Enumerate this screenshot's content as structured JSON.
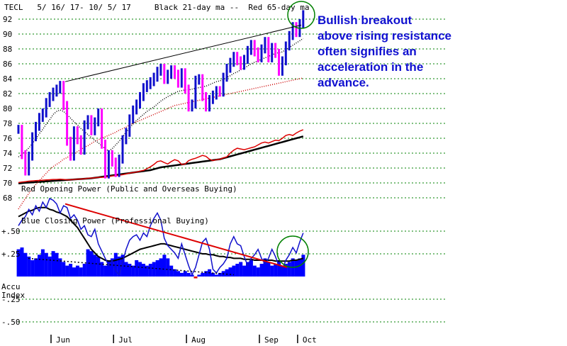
{
  "chart_data": {
    "type": "line",
    "title": "TECL   5/ 16/ 17- 10/ 5/ 17     Black 21-day ma --  Red 65-day ma",
    "price_axis": {
      "ticks": [
        "92",
        "90",
        "88",
        "86",
        "84",
        "82",
        "80",
        "78",
        "76",
        "74",
        "72",
        "70",
        "68"
      ],
      "ylim": [
        67,
        93
      ],
      "grid": true
    },
    "indicator_axis": {
      "ticks": [
        "+.50",
        "+.25",
        "-.25",
        "-.50"
      ],
      "ylim": [
        -0.6,
        0.6
      ],
      "index_label": [
        "Accu",
        "Index"
      ]
    },
    "x_axis": {
      "months": [
        "Jun",
        "Jul",
        "Aug",
        "Sep",
        "Oct"
      ]
    },
    "annotation": [
      "Bullish breakout",
      "above rising resistance",
      "often signifies an",
      "acceleration in the",
      "advance."
    ],
    "opening_power_label": "Red Opening Power (Public and Overseas Buying)",
    "closing_power_label": "Blue Closing Power (Professional Buying)",
    "colors": {
      "up_bar": "#1010cc",
      "down_bar": "#ff00ff",
      "ma65": "#cc0000",
      "ma21": "#000000",
      "opening_power": "#dd0000",
      "closing_power": "#1010cc",
      "accumulation": "#0000ff",
      "grid": "#008000",
      "circle": "#008000"
    },
    "price_close": [
      77.2,
      73.8,
      71.6,
      73.6,
      76.2,
      77.6,
      78.8,
      79.4,
      80.8,
      81.6,
      82.2,
      82.6,
      83.1,
      80.4,
      75.6,
      73.6,
      77.0,
      75.8,
      74.4,
      77.8,
      78.5,
      77.0,
      78.2,
      79.4,
      75.2,
      71.2,
      73.8,
      72.8,
      71.4,
      73.2,
      75.8,
      76.8,
      78.6,
      79.8,
      80.6,
      81.6,
      82.8,
      83.2,
      83.6,
      84.2,
      85.0,
      85.4,
      83.9,
      84.6,
      85.2,
      84.6,
      83.4,
      84.8,
      82.6,
      80.2,
      80.6,
      83.8,
      84.0,
      81.6,
      80.2,
      81.2,
      81.8,
      82.4,
      82.2,
      84.2,
      85.4,
      86.2,
      87.0,
      86.4,
      85.8,
      86.6,
      87.8,
      88.6,
      87.6,
      86.8,
      88.0,
      89.0,
      86.8,
      88.2,
      87.4,
      85.0,
      86.4,
      88.4,
      89.8,
      91.0,
      90.2,
      91.4,
      92.6
    ],
    "ma65": [
      66.5,
      67.2,
      67.9,
      68.6,
      69.2,
      69.8,
      70.3,
      70.8,
      71.3,
      71.8,
      72.2,
      72.5,
      72.8,
      73.2,
      73.4,
      73.7,
      73.9,
      74.2,
      74.5,
      74.8,
      75.0,
      75.3,
      75.6,
      75.8,
      76.0,
      76.2,
      76.4,
      76.6,
      76.8,
      77.1,
      77.3,
      77.5,
      77.8,
      78.0,
      78.2,
      78.4,
      78.6,
      78.8,
      79.0,
      79.2,
      79.4,
      79.6,
      79.8,
      80.0,
      80.2,
      80.4,
      80.5,
      80.6,
      80.7,
      80.8,
      80.9,
      81.0,
      81.1,
      81.2,
      81.3,
      81.4,
      81.5,
      81.6,
      81.7,
      81.8,
      81.9,
      82.0,
      82.1,
      82.2,
      82.3,
      82.4,
      82.5,
      82.6,
      82.7,
      82.8,
      82.9,
      83.0,
      83.1,
      83.2,
      83.3,
      83.4,
      83.5,
      83.6,
      83.7,
      83.8,
      83.9,
      84.0,
      84.1
    ],
    "ma21": [
      73.5,
      73.8,
      74.2,
      74.7,
      75.3,
      75.9,
      76.6,
      77.2,
      77.9,
      78.5,
      79.2,
      79.6,
      79.8,
      79.6,
      79.2,
      78.7,
      78.2,
      77.8,
      77.3,
      76.9,
      76.5,
      76.1,
      75.7,
      75.4,
      75.0,
      74.6,
      74.3,
      74.6,
      75.1,
      75.6,
      76.2,
      76.8,
      77.4,
      77.9,
      78.4,
      78.8,
      79.2,
      79.6,
      79.9,
      80.2,
      80.6,
      81.0,
      81.3,
      81.6,
      81.8,
      82.1,
      82.3,
      82.4,
      82.5,
      82.5,
      82.6,
      82.7,
      82.8,
      82.9,
      83.0,
      83.2,
      83.4,
      83.6,
      83.7,
      83.9,
      84.2,
      84.4,
      84.7,
      84.9,
      85.2,
      85.4,
      85.7,
      86.0,
      86.2,
      86.4,
      86.6,
      86.8,
      87.0,
      87.2,
      87.4,
      87.5,
      87.6,
      87.9,
      88.2,
      88.5,
      88.8,
      89.1,
      89.4
    ],
    "opening_power": [
      0.64,
      0.66,
      0.68,
      0.7,
      0.71,
      0.72,
      0.73,
      0.74,
      0.75,
      0.76,
      0.77,
      0.77,
      0.78,
      0.77,
      0.76,
      0.76,
      0.77,
      0.78,
      0.79,
      0.8,
      0.82,
      0.83,
      0.84,
      0.86,
      0.86,
      0.87,
      0.89,
      0.92,
      0.93,
      0.95,
      0.97,
      1.0,
      1.04,
      1.06,
      1.08,
      1.12,
      1.15,
      1.22,
      1.3,
      1.4,
      1.52,
      1.55,
      1.48,
      1.42,
      1.52,
      1.6,
      1.55,
      1.4,
      1.42,
      1.56,
      1.62,
      1.66,
      1.72,
      1.78,
      1.74,
      1.62,
      1.56,
      1.6,
      1.62,
      1.68,
      1.72,
      1.88,
      2.0,
      2.08,
      2.05,
      2.02,
      2.06,
      2.1,
      2.14,
      2.22,
      2.3,
      2.34,
      2.3,
      2.36,
      2.42,
      2.4,
      2.5,
      2.62,
      2.66,
      2.62,
      2.72,
      2.8,
      2.86
    ],
    "opening_power_ma21": [
      0.6,
      0.62,
      0.63,
      0.64,
      0.65,
      0.66,
      0.67,
      0.68,
      0.69,
      0.7,
      0.71,
      0.72,
      0.73,
      0.74,
      0.75,
      0.76,
      0.77,
      0.78,
      0.79,
      0.8,
      0.81,
      0.82,
      0.84,
      0.86,
      0.88,
      0.9,
      0.92,
      0.94,
      0.96,
      0.98,
      1.0,
      1.02,
      1.04,
      1.06,
      1.08,
      1.1,
      1.12,
      1.14,
      1.16,
      1.2,
      1.24,
      1.28,
      1.3,
      1.32,
      1.34,
      1.36,
      1.38,
      1.4,
      1.42,
      1.44,
      1.46,
      1.48,
      1.5,
      1.52,
      1.54,
      1.56,
      1.58,
      1.6,
      1.62,
      1.66,
      1.7,
      1.74,
      1.78,
      1.82,
      1.86,
      1.9,
      1.94,
      1.98,
      2.02,
      2.06,
      2.1,
      2.14,
      2.18,
      2.22,
      2.26,
      2.3,
      2.34,
      2.38,
      2.42,
      2.46,
      2.5,
      2.54,
      2.58
    ],
    "closing_power": [
      0.56,
      0.62,
      0.66,
      0.74,
      0.68,
      0.78,
      0.72,
      0.82,
      0.76,
      0.86,
      0.84,
      0.8,
      0.7,
      0.78,
      0.76,
      0.64,
      0.68,
      0.62,
      0.52,
      0.56,
      0.46,
      0.44,
      0.52,
      0.36,
      0.28,
      0.2,
      0.12,
      0.18,
      0.06,
      0.02,
      0.16,
      0.3,
      0.4,
      0.44,
      0.46,
      0.4,
      0.48,
      0.44,
      0.56,
      0.64,
      0.7,
      0.62,
      0.42,
      0.34,
      0.3,
      0.26,
      0.2,
      0.36,
      0.24,
      0.12,
      0.02,
      0.1,
      0.24,
      0.38,
      0.42,
      0.3,
      0.08,
      0.04,
      0.1,
      0.14,
      0.2,
      0.36,
      0.44,
      0.36,
      0.34,
      0.22,
      0.12,
      0.2,
      0.24,
      0.3,
      0.2,
      0.14,
      0.2,
      0.3,
      0.22,
      0.12,
      0.08,
      0.18,
      0.24,
      0.32,
      0.26,
      0.38,
      0.48
    ],
    "closing_power_ma21": [
      0.66,
      0.68,
      0.7,
      0.72,
      0.73,
      0.75,
      0.76,
      0.76,
      0.76,
      0.74,
      0.73,
      0.71,
      0.7,
      0.68,
      0.66,
      0.62,
      0.58,
      0.54,
      0.48,
      0.42,
      0.36,
      0.3,
      0.26,
      0.22,
      0.2,
      0.18,
      0.17,
      0.17,
      0.18,
      0.19,
      0.2,
      0.22,
      0.24,
      0.26,
      0.28,
      0.3,
      0.31,
      0.32,
      0.33,
      0.34,
      0.35,
      0.36,
      0.36,
      0.35,
      0.34,
      0.33,
      0.32,
      0.31,
      0.3,
      0.29,
      0.28,
      0.27,
      0.26,
      0.25,
      0.25,
      0.24,
      0.24,
      0.23,
      0.22,
      0.22,
      0.21,
      0.21,
      0.2,
      0.2,
      0.2,
      0.19,
      0.19,
      0.19,
      0.18,
      0.18,
      0.18,
      0.18,
      0.18,
      0.18,
      0.17,
      0.17,
      0.17,
      0.17,
      0.17,
      0.18,
      0.18,
      0.19,
      0.2
    ],
    "accumulation_index": [
      0.3,
      0.32,
      0.26,
      0.22,
      0.18,
      0.2,
      0.24,
      0.3,
      0.26,
      0.22,
      0.28,
      0.26,
      0.2,
      0.16,
      0.12,
      0.14,
      0.1,
      0.12,
      0.1,
      0.14,
      0.3,
      0.28,
      0.24,
      0.22,
      0.16,
      0.12,
      0.18,
      0.2,
      0.26,
      0.22,
      0.24,
      0.16,
      0.14,
      0.12,
      0.18,
      0.16,
      0.14,
      0.12,
      0.14,
      0.16,
      0.18,
      0.2,
      0.24,
      0.2,
      0.12,
      0.08,
      0.06,
      0.04,
      0.06,
      0.04,
      0.02,
      -0.02,
      0.02,
      0.04,
      0.06,
      0.08,
      0.04,
      0.02,
      0.04,
      0.06,
      0.08,
      0.1,
      0.12,
      0.14,
      0.16,
      0.12,
      0.16,
      0.18,
      0.12,
      0.1,
      0.14,
      0.2,
      0.16,
      0.12,
      0.14,
      0.18,
      0.12,
      0.14,
      0.16,
      0.2,
      0.18,
      0.2,
      0.24
    ]
  }
}
